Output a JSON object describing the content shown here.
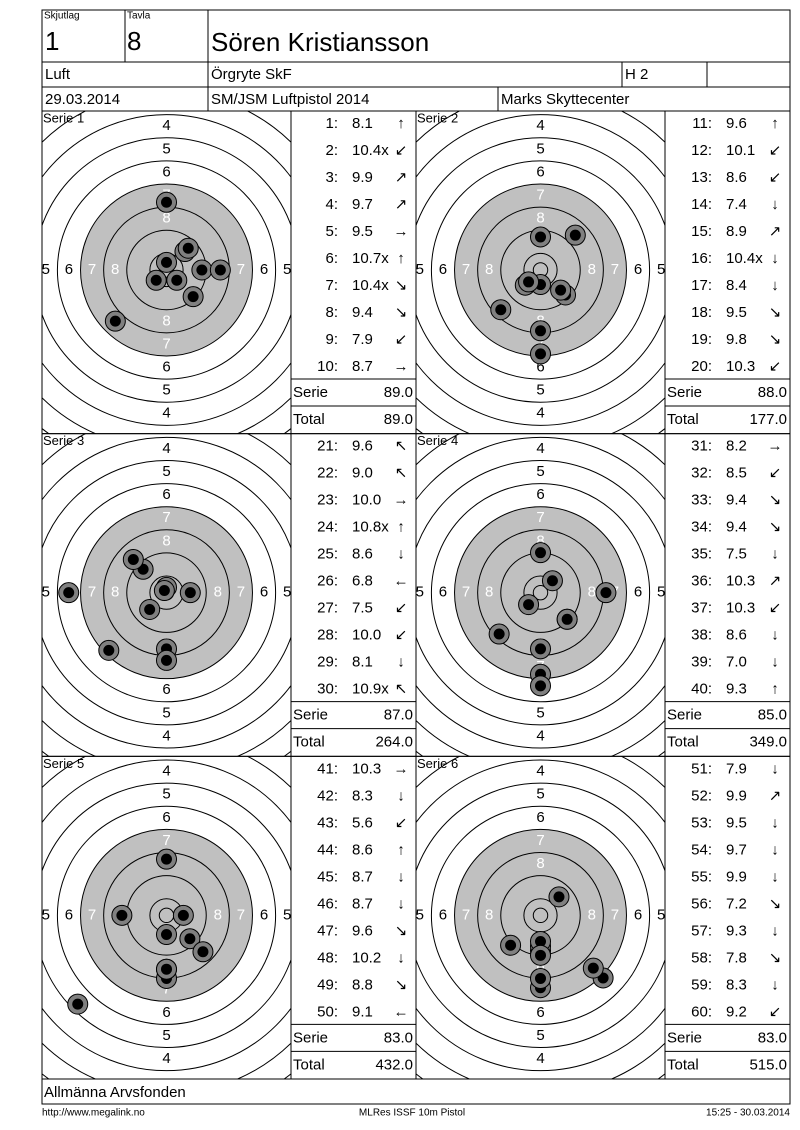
{
  "header": {
    "squad_label": "Skjutlag",
    "squad": "1",
    "target_label": "Tavla",
    "target": "8",
    "name": "Sören Kristiansson",
    "class": "Luft",
    "club": "Örgryte SkF",
    "group": "H 2",
    "date": "29.03.2014",
    "competition": "SM/JSM Luftpistol 2014",
    "venue": "Marks Skyttecenter"
  },
  "ring_numbers": [
    "4",
    "5",
    "6",
    "7",
    "8"
  ],
  "serie_label": "Serie",
  "total_label": "Total",
  "series": [
    {
      "label": "Serie 1",
      "serie": "89.0",
      "total": "89.0",
      "shots": [
        {
          "no": "1:",
          "score": "8.1",
          "dir": "↑"
        },
        {
          "no": "2:",
          "score": "10.4x",
          "dir": "↙"
        },
        {
          "no": "3:",
          "score": "9.9",
          "dir": "↗"
        },
        {
          "no": "4:",
          "score": "9.7",
          "dir": "↗"
        },
        {
          "no": "5:",
          "score": "9.5",
          "dir": "→"
        },
        {
          "no": "6:",
          "score": "10.7x",
          "dir": "↑"
        },
        {
          "no": "7:",
          "score": "10.4x",
          "dir": "↘"
        },
        {
          "no": "8:",
          "score": "9.4",
          "dir": "↘"
        },
        {
          "no": "9:",
          "score": "7.9",
          "dir": "↙"
        },
        {
          "no": "10:",
          "score": "8.7",
          "dir": "→"
        }
      ]
    },
    {
      "label": "Serie 2",
      "serie": "88.0",
      "total": "177.0",
      "shots": [
        {
          "no": "11:",
          "score": "9.6",
          "dir": "↑"
        },
        {
          "no": "12:",
          "score": "10.1",
          "dir": "↙"
        },
        {
          "no": "13:",
          "score": "8.6",
          "dir": "↙"
        },
        {
          "no": "14:",
          "score": "7.4",
          "dir": "↓"
        },
        {
          "no": "15:",
          "score": "8.9",
          "dir": "↗"
        },
        {
          "no": "16:",
          "score": "10.4x",
          "dir": "↓"
        },
        {
          "no": "17:",
          "score": "8.4",
          "dir": "↓"
        },
        {
          "no": "18:",
          "score": "9.5",
          "dir": "↘"
        },
        {
          "no": "19:",
          "score": "9.8",
          "dir": "↘"
        },
        {
          "no": "20:",
          "score": "10.3",
          "dir": "↙"
        }
      ]
    },
    {
      "label": "Serie 3",
      "serie": "87.0",
      "total": "264.0",
      "shots": [
        {
          "no": "21:",
          "score": "9.6",
          "dir": "↖"
        },
        {
          "no": "22:",
          "score": "9.0",
          "dir": "↖"
        },
        {
          "no": "23:",
          "score": "10.0",
          "dir": "→"
        },
        {
          "no": "24:",
          "score": "10.8x",
          "dir": "↑"
        },
        {
          "no": "25:",
          "score": "8.6",
          "dir": "↓"
        },
        {
          "no": "26:",
          "score": "6.8",
          "dir": "←"
        },
        {
          "no": "27:",
          "score": "7.5",
          "dir": "↙"
        },
        {
          "no": "28:",
          "score": "10.0",
          "dir": "↙"
        },
        {
          "no": "29:",
          "score": "8.1",
          "dir": "↓"
        },
        {
          "no": "30:",
          "score": "10.9x",
          "dir": "↖"
        }
      ]
    },
    {
      "label": "Serie 4",
      "serie": "85.0",
      "total": "349.0",
      "shots": [
        {
          "no": "31:",
          "score": "8.2",
          "dir": "→"
        },
        {
          "no": "32:",
          "score": "8.5",
          "dir": "↙"
        },
        {
          "no": "33:",
          "score": "9.4",
          "dir": "↘"
        },
        {
          "no": "34:",
          "score": "9.4",
          "dir": "↘"
        },
        {
          "no": "35:",
          "score": "7.5",
          "dir": "↓"
        },
        {
          "no": "36:",
          "score": "10.3",
          "dir": "↗"
        },
        {
          "no": "37:",
          "score": "10.3",
          "dir": "↙"
        },
        {
          "no": "38:",
          "score": "8.6",
          "dir": "↓"
        },
        {
          "no": "39:",
          "score": "7.0",
          "dir": "↓"
        },
        {
          "no": "40:",
          "score": "9.3",
          "dir": "↑"
        }
      ]
    },
    {
      "label": "Serie 5",
      "serie": "83.0",
      "total": "432.0",
      "shots": [
        {
          "no": "41:",
          "score": "10.3",
          "dir": "→"
        },
        {
          "no": "42:",
          "score": "8.3",
          "dir": "↓"
        },
        {
          "no": "43:",
          "score": "5.6",
          "dir": "↙"
        },
        {
          "no": "44:",
          "score": "8.6",
          "dir": "↑"
        },
        {
          "no": "45:",
          "score": "8.7",
          "dir": "↓"
        },
        {
          "no": "46:",
          "score": "8.7",
          "dir": "↓"
        },
        {
          "no": "47:",
          "score": "9.6",
          "dir": "↘"
        },
        {
          "no": "48:",
          "score": "10.2",
          "dir": "↓"
        },
        {
          "no": "49:",
          "score": "8.8",
          "dir": "↘"
        },
        {
          "no": "50:",
          "score": "9.1",
          "dir": "←"
        }
      ]
    },
    {
      "label": "Serie 6",
      "serie": "83.0",
      "total": "515.0",
      "shots": [
        {
          "no": "51:",
          "score": "7.9",
          "dir": "↓"
        },
        {
          "no": "52:",
          "score": "9.9",
          "dir": "↗"
        },
        {
          "no": "53:",
          "score": "9.5",
          "dir": "↓"
        },
        {
          "no": "54:",
          "score": "9.7",
          "dir": "↓"
        },
        {
          "no": "55:",
          "score": "9.9",
          "dir": "↓"
        },
        {
          "no": "56:",
          "score": "7.2",
          "dir": "↘"
        },
        {
          "no": "57:",
          "score": "9.3",
          "dir": "↓"
        },
        {
          "no": "58:",
          "score": "7.8",
          "dir": "↘"
        },
        {
          "no": "59:",
          "score": "8.3",
          "dir": "↓"
        },
        {
          "no": "60:",
          "score": "9.2",
          "dir": "↙"
        }
      ]
    }
  ],
  "footer": {
    "sponsor": "Allmänna Arvsfonden",
    "url": "http://www.megalink.no",
    "program": "MLRes ISSF 10m Pistol",
    "timestamp": "15:25 - 30.03.2014"
  }
}
